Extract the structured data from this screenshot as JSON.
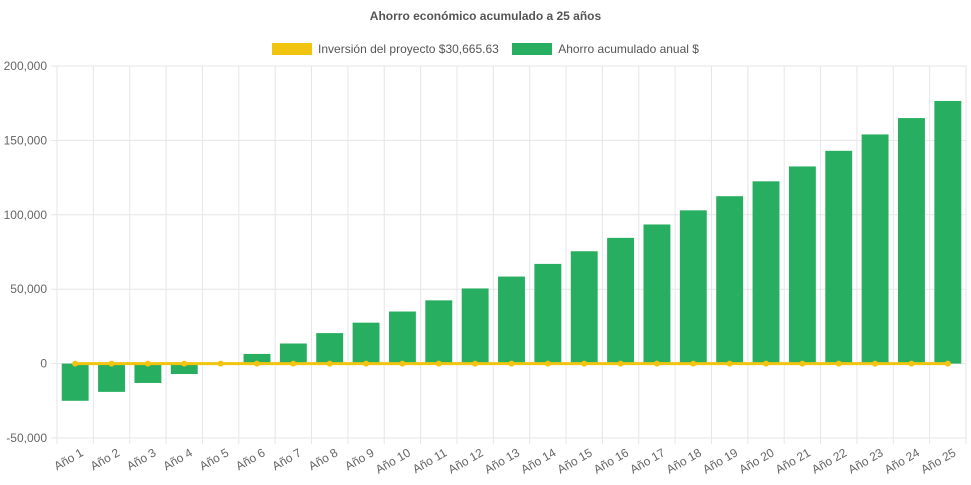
{
  "chart_data": {
    "type": "bar",
    "title": "Ahorro económico acumulado a 25 años",
    "legend_position": "top-center",
    "grid": true,
    "categories": [
      "Año 1",
      "Año 2",
      "Año 3",
      "Año 4",
      "Año 5",
      "Año 6",
      "Año 7",
      "Año 8",
      "Año 9",
      "Año 10",
      "Año 11",
      "Año 12",
      "Año 13",
      "Año 14",
      "Año 15",
      "Año 16",
      "Año 17",
      "Año 18",
      "Año 19",
      "Año 20",
      "Año 21",
      "Año 22",
      "Año 23",
      "Año 24",
      "Año 25"
    ],
    "ylim": [
      -50000,
      200000
    ],
    "yticks": [
      -50000,
      0,
      50000,
      100000,
      150000,
      200000
    ],
    "ytick_labels": [
      "-50,000",
      "0",
      "50,000",
      "100,000",
      "150,000",
      "200,000"
    ],
    "series": [
      {
        "name": "Inversión del proyecto $30,665.63",
        "type": "line",
        "color": "#f1c40f",
        "values": [
          0,
          0,
          0,
          0,
          0,
          0,
          0,
          0,
          0,
          0,
          0,
          0,
          0,
          0,
          0,
          0,
          0,
          0,
          0,
          0,
          0,
          0,
          0,
          0,
          0
        ]
      },
      {
        "name": "Ahorro acumulado anual $",
        "type": "bar",
        "color": "#27ae60",
        "values": [
          -25000,
          -19000,
          -13000,
          -7000,
          0,
          6500,
          13500,
          20500,
          27500,
          35000,
          42500,
          50500,
          58500,
          67000,
          75500,
          84500,
          93500,
          103000,
          112500,
          122500,
          132500,
          143000,
          154000,
          165000,
          176500
        ]
      }
    ]
  }
}
